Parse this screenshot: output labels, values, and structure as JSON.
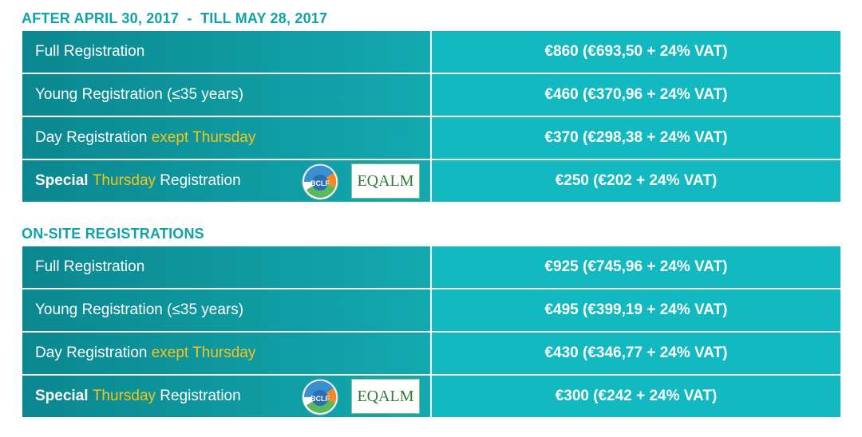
{
  "sections": [
    {
      "title": "AFTER APRIL 30, 2017  -  TILL MAY 28, 2017",
      "rows": [
        {
          "label": [
            {
              "text": "Full Registration"
            }
          ],
          "price": "€860 (€693,50 + 24% VAT)"
        },
        {
          "label": [
            {
              "text": "Young Registration (≤35 years)"
            }
          ],
          "price": "€460 (€370,96 + 24% VAT)"
        },
        {
          "label": [
            {
              "text": "Day Registration "
            },
            {
              "text": "exept Thursday",
              "color": "#f5c518"
            }
          ],
          "price": "€370 (€298,38 + 24% VAT)"
        },
        {
          "label": [
            {
              "text": "Special ",
              "bold": true
            },
            {
              "text": "Thursday",
              "color": "#f5c518"
            },
            {
              "text": " Registration"
            }
          ],
          "logos": [
            "BCLF",
            "EQALM"
          ],
          "price": "€250 (€202 + 24% VAT)"
        }
      ]
    },
    {
      "title": "ON-SITE REGISTRATIONS",
      "rows": [
        {
          "label": [
            {
              "text": "Full Registration"
            }
          ],
          "price": "€925 (€745,96 + 24% VAT)"
        },
        {
          "label": [
            {
              "text": "Young Registration (≤35 years)"
            }
          ],
          "price": "€495 (€399,19 + 24% VAT)"
        },
        {
          "label": [
            {
              "text": "Day Registration "
            },
            {
              "text": "exept Thursday",
              "color": "#f5c518"
            }
          ],
          "price": "€430 (€346,77 + 24% VAT)"
        },
        {
          "label": [
            {
              "text": "Special ",
              "bold": true
            },
            {
              "text": "Thursday",
              "color": "#f5c518"
            },
            {
              "text": " Registration"
            }
          ],
          "logos": [
            "BCLF",
            "EQALM"
          ],
          "price": "€300 (€242 + 24% VAT)"
        }
      ]
    }
  ]
}
